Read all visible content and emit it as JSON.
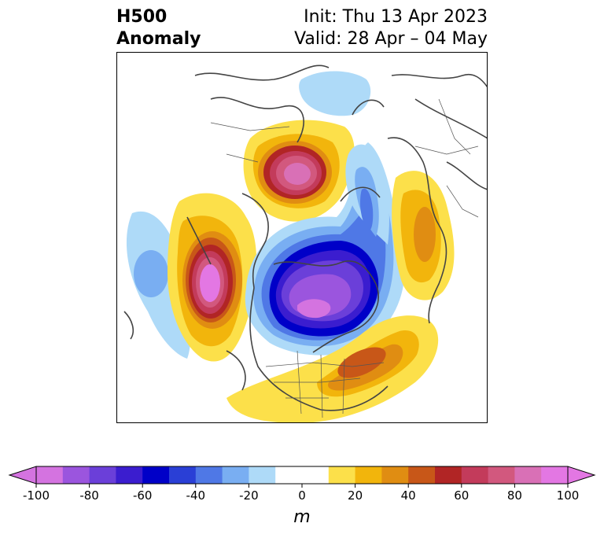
{
  "title": {
    "variable": "H500",
    "field": "Anomaly",
    "init": "Init: Thu 13 Apr 2023",
    "valid": "Valid: 28 Apr – 04 May"
  },
  "map": {
    "projection": "north-polar-stereographic",
    "region": "Northern Hemisphere",
    "features": [
      {
        "name": "east-pacific-ridge",
        "sign": "positive",
        "peak": 100
      },
      {
        "name": "central-pacific-trough",
        "sign": "negative",
        "peak": -40
      },
      {
        "name": "siberian-arctic-ridge",
        "sign": "positive",
        "peak": 100
      },
      {
        "name": "canada-greenland-trough",
        "sign": "negative",
        "peak": -100
      },
      {
        "name": "western-atlantic-ridge",
        "sign": "positive",
        "peak": 60
      },
      {
        "name": "europe-ridge",
        "sign": "positive",
        "peak": 30
      },
      {
        "name": "europe-arctic-trough",
        "sign": "negative",
        "peak": -40
      },
      {
        "name": "north-africa-trough",
        "sign": "negative",
        "peak": -20
      }
    ]
  },
  "colorbar": {
    "unit": "m",
    "ticks": [
      "-100",
      "-80",
      "-60",
      "-40",
      "-20",
      "0",
      "20",
      "40",
      "60",
      "80",
      "100"
    ],
    "levels": [
      -100,
      -90,
      -80,
      -70,
      -60,
      -50,
      -40,
      -30,
      -20,
      -10,
      10,
      20,
      30,
      40,
      50,
      60,
      70,
      80,
      90,
      100
    ],
    "colors": [
      "#d473e0",
      "#9b55de",
      "#6b3fd9",
      "#3b1dcf",
      "#0000c8",
      "#2a3fd6",
      "#4f78e6",
      "#79aef2",
      "#aedaf8",
      "#ffffff",
      "#fce04a",
      "#f2b50c",
      "#e08d12",
      "#c85718",
      "#b12525",
      "#c33b5b",
      "#d2587e",
      "#d970b6",
      "#e377e3"
    ],
    "over_color": "#e377e3",
    "under_color": "#d473e0"
  }
}
